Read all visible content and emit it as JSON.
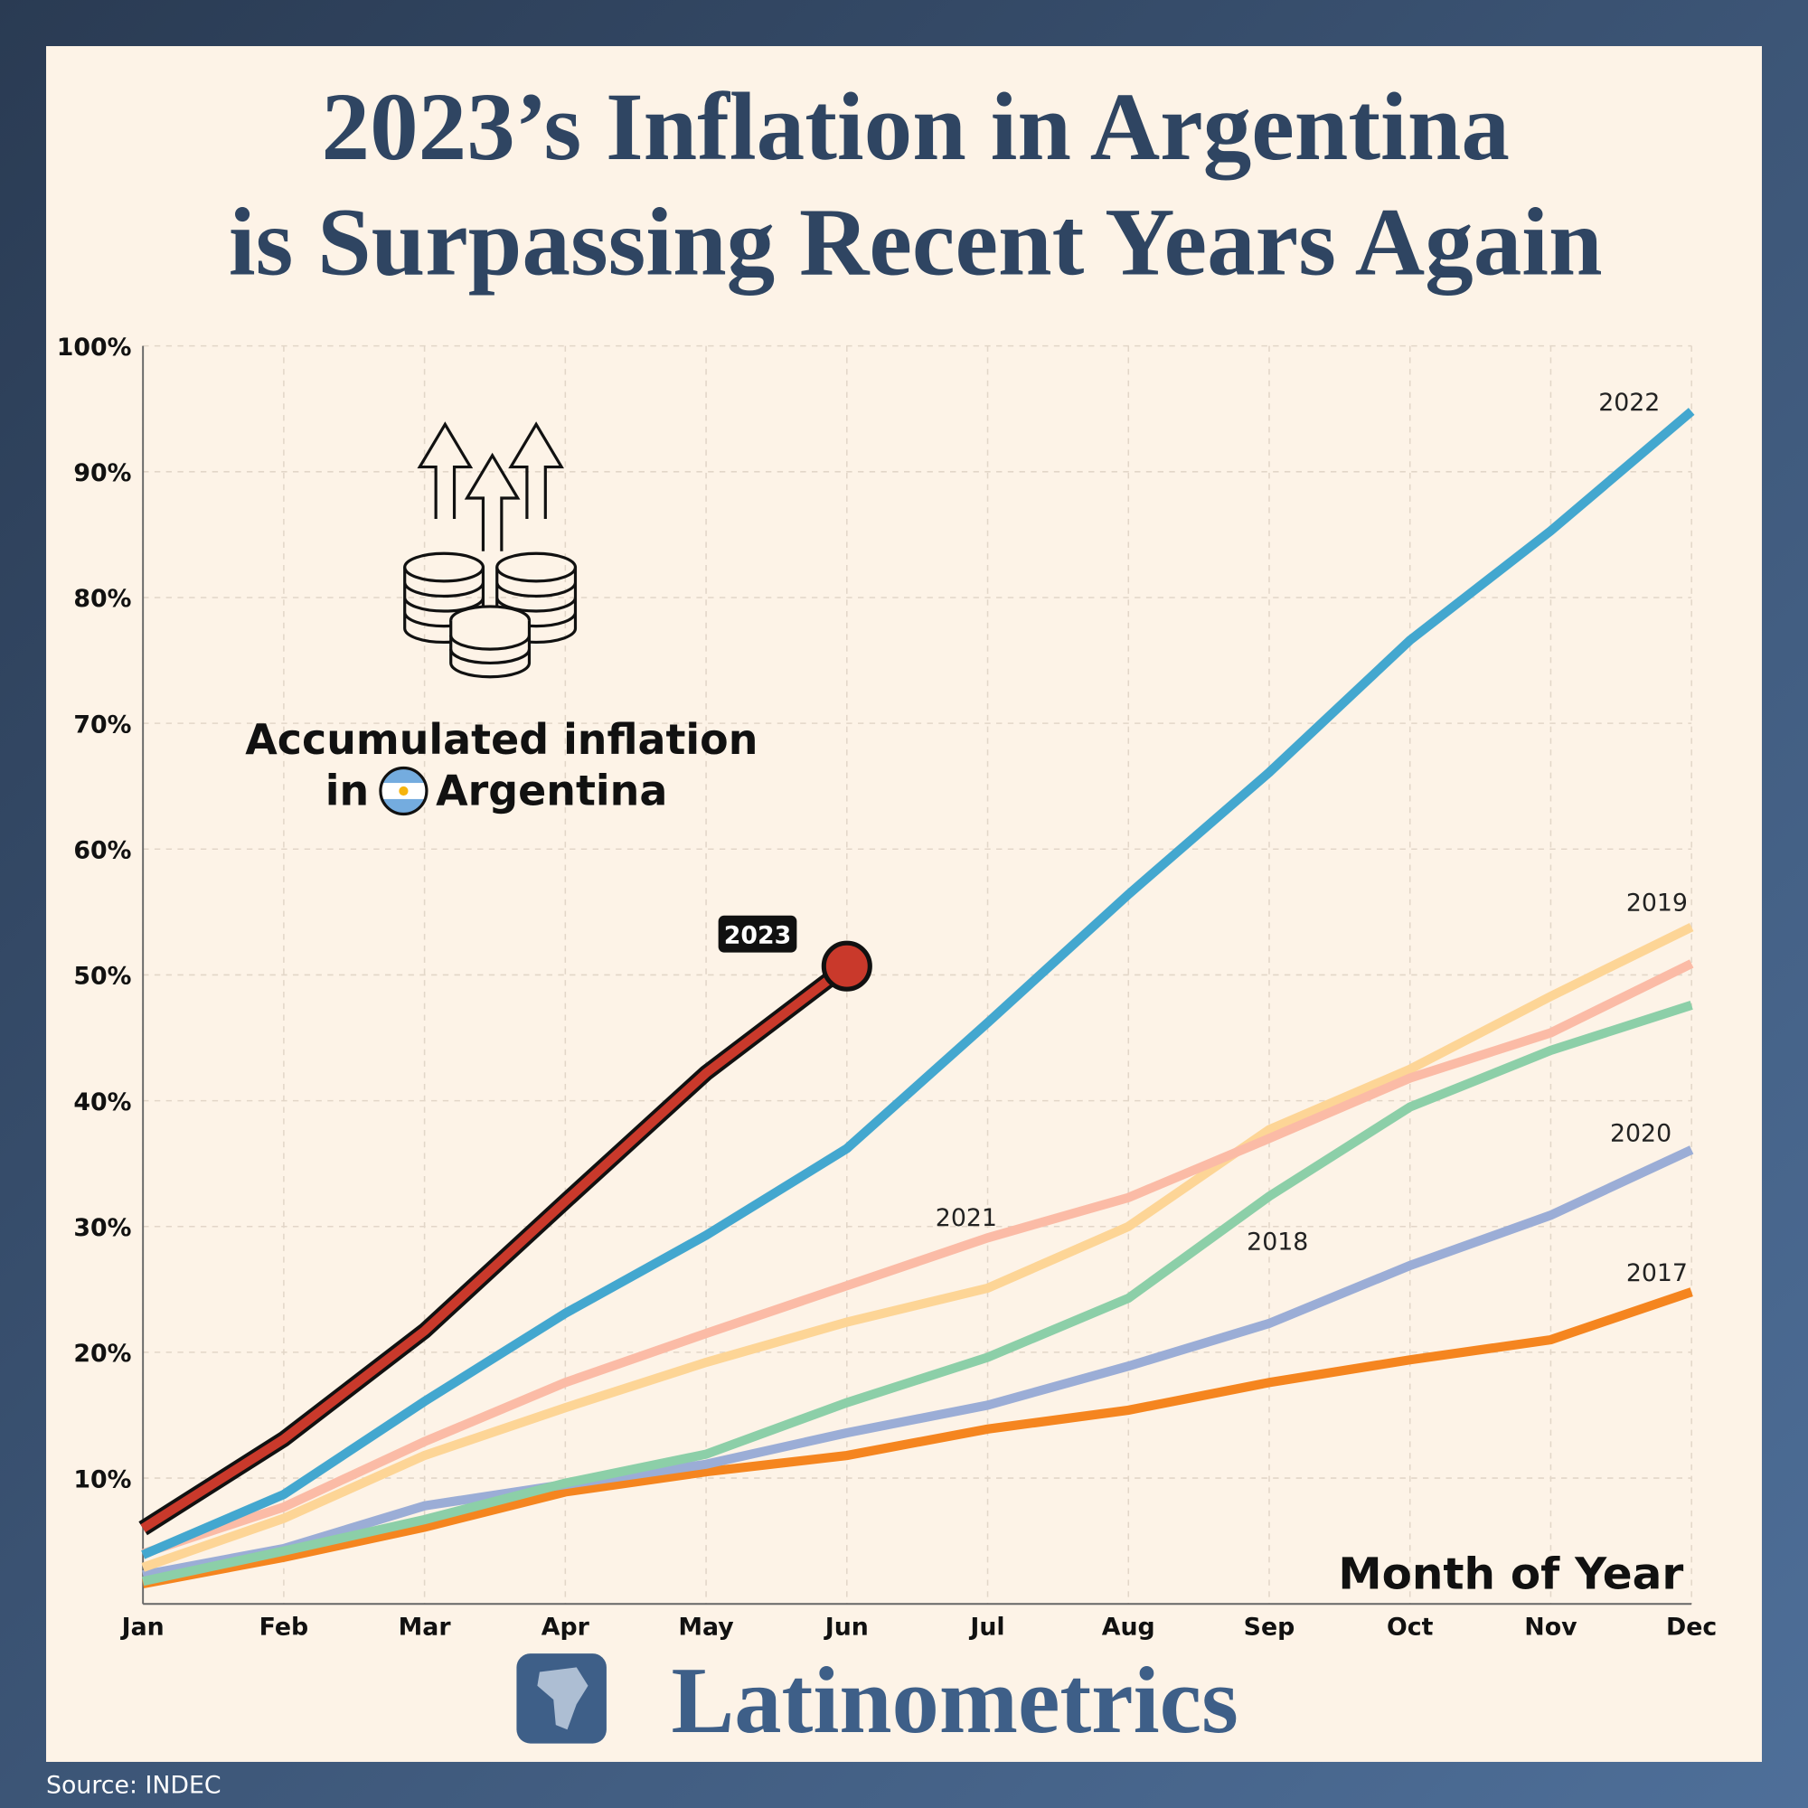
{
  "chart_data": {
    "type": "line",
    "title_lines": [
      "2023’s Inflation in Argentina",
      "is Surpassing Recent Years Again"
    ],
    "annotation_lines": [
      "Accumulated inflation",
      "in",
      "Argentina"
    ],
    "x_label": "Month of Year",
    "brand": "Latinometrics",
    "source": "Source: INDEC",
    "categories": [
      "Jan",
      "Feb",
      "Mar",
      "Apr",
      "May",
      "Jun",
      "Jul",
      "Aug",
      "Sep",
      "Oct",
      "Nov",
      "Dec"
    ],
    "ylim": [
      0,
      100
    ],
    "yticks": [
      {
        "value": 10,
        "label": "10%"
      },
      {
        "value": 20,
        "label": "20%"
      },
      {
        "value": 30,
        "label": "30%"
      },
      {
        "value": 40,
        "label": "40%"
      },
      {
        "value": 50,
        "label": "50%"
      },
      {
        "value": 60,
        "label": "60%"
      },
      {
        "value": 70,
        "label": "70%"
      },
      {
        "value": 80,
        "label": "80%"
      },
      {
        "value": 90,
        "label": "90%"
      },
      {
        "value": 100,
        "label": "100%"
      }
    ],
    "grid": true,
    "series": [
      {
        "name": "2017",
        "color": "#f5851f",
        "values": [
          1.6,
          3.7,
          6.1,
          8.9,
          10.5,
          11.8,
          13.9,
          15.4,
          17.6,
          19.4,
          21.0,
          24.8
        ]
      },
      {
        "name": "2020",
        "color": "#9badd6",
        "values": [
          2.3,
          4.4,
          7.8,
          9.5,
          11.1,
          13.6,
          15.8,
          18.9,
          22.3,
          26.9,
          30.9,
          36.1
        ]
      },
      {
        "name": "2018",
        "color": "#8ccfa8",
        "values": [
          1.8,
          4.2,
          6.7,
          9.6,
          11.9,
          16.0,
          19.6,
          24.3,
          32.4,
          39.5,
          44.0,
          47.6
        ]
      },
      {
        "name": "2019",
        "color": "#fdd596",
        "values": [
          2.9,
          6.8,
          11.8,
          15.6,
          19.2,
          22.4,
          25.1,
          30.0,
          37.7,
          42.5,
          48.3,
          53.8
        ]
      },
      {
        "name": "2021",
        "color": "#fbbba6",
        "values": [
          4.0,
          7.7,
          12.9,
          17.6,
          21.5,
          25.3,
          29.1,
          32.3,
          37.0,
          41.8,
          45.4,
          50.9
        ]
      },
      {
        "name": "2022",
        "color": "#43a7cf",
        "values": [
          3.9,
          8.7,
          16.1,
          23.1,
          29.3,
          36.2,
          46.2,
          56.4,
          66.1,
          76.6,
          85.3,
          94.8
        ]
      },
      {
        "name": "2023",
        "color": "#c9392b",
        "outline": "#111111",
        "values": [
          6.0,
          13.1,
          21.7,
          32.0,
          42.2,
          50.7,
          null,
          null,
          null,
          null,
          null,
          null
        ]
      }
    ]
  }
}
